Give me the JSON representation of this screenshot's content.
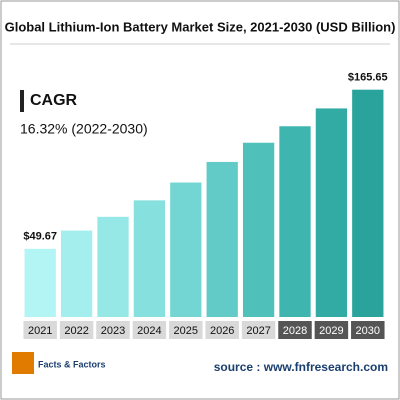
{
  "chart_data": {
    "type": "bar",
    "title": "Global Lithium-Ion Battery Market Size, 2021-2030 (USD Billion)",
    "categories": [
      "2021",
      "2022",
      "2023",
      "2024",
      "2025",
      "2026",
      "2027",
      "2028",
      "2029",
      "2030"
    ],
    "values": [
      49.67,
      63,
      73,
      85,
      98,
      113,
      127,
      139,
      152,
      165.65
    ],
    "value_labels": [
      "$49.67",
      null,
      null,
      null,
      null,
      null,
      null,
      null,
      null,
      "$165.65"
    ],
    "colors": [
      "#b3f5f5",
      "#a5eeee",
      "#96e8e7",
      "#86e0de",
      "#74d6d3",
      "#62cbc7",
      "#50c0bb",
      "#3fb5af",
      "#33aba5",
      "#2aa39c"
    ],
    "ylim": [
      0,
      180
    ],
    "annotation_title": "CAGR",
    "annotation": "16.32% (2022-2030)",
    "logo": "Facts & Factors",
    "source": "source : www.fnfresearch.com"
  }
}
